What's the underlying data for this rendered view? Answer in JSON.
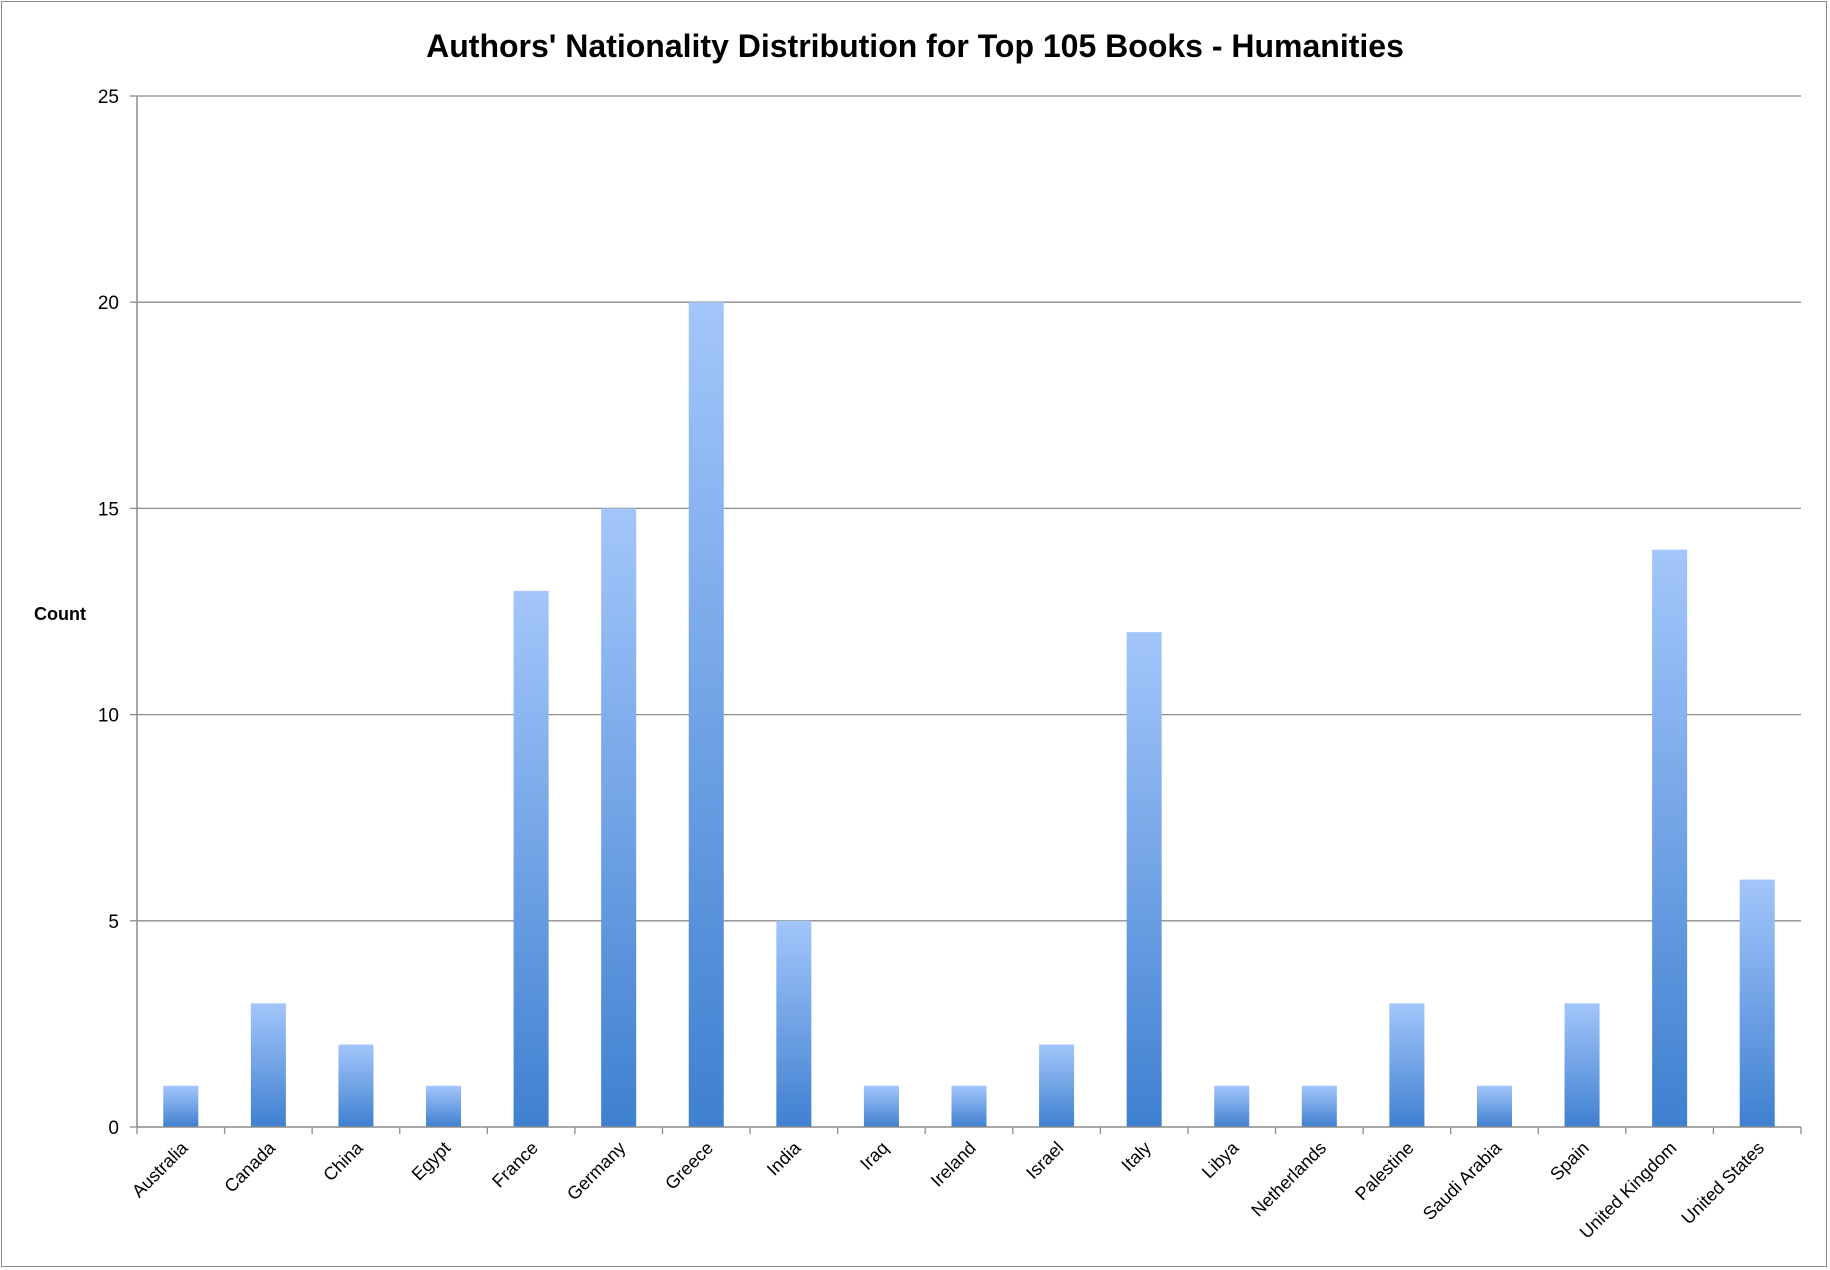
{
  "chart_data": {
    "type": "bar",
    "title": "Authors' Nationality Distribution for Top 105 Books - Humanities",
    "xlabel": "",
    "ylabel": "Count",
    "ylim": [
      0,
      25
    ],
    "yticks": [
      0,
      5,
      10,
      15,
      20,
      25
    ],
    "grid": true,
    "legend": "none",
    "categories": [
      "Australia",
      "Canada",
      "China",
      "Egypt",
      "France",
      "Germany",
      "Greece",
      "India",
      "Iraq",
      "Ireland",
      "Israel",
      "Italy",
      "Libya",
      "Netherlands",
      "Palestine",
      "Saudi Arabia",
      "Spain",
      "United Kingdom",
      "United States"
    ],
    "values": [
      1,
      3,
      2,
      1,
      13,
      15,
      20,
      5,
      1,
      1,
      2,
      12,
      1,
      1,
      3,
      1,
      3,
      14,
      6
    ],
    "colors": {
      "bar_top": "#a3c6fb",
      "bar_bottom": "#3f80d0",
      "grid": "#8c8c8c",
      "axis": "#8c8c8c"
    }
  }
}
